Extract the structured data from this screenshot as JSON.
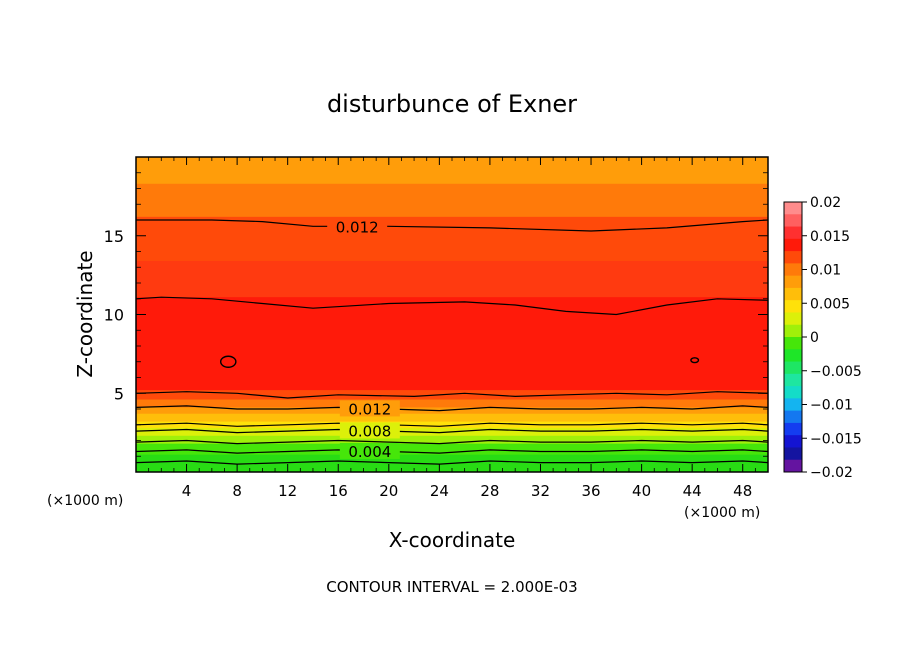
{
  "chart_data": {
    "type": "heatmap",
    "title": "disturbunce of Exner",
    "xlabel": "X-coordinate",
    "ylabel": "Z-coordinate",
    "x_unit_left": "(×1000 m)",
    "x_unit_right": "(×1000 m)",
    "footer": "CONTOUR INTERVAL = 2.000E-03",
    "xlim": [
      0,
      50
    ],
    "ylim": [
      0,
      20
    ],
    "x_ticks": [
      4,
      8,
      12,
      16,
      20,
      24,
      28,
      32,
      36,
      40,
      44,
      48
    ],
    "x_tick_labels": [
      "4",
      "8",
      "12",
      "16",
      "20",
      "24",
      "28",
      "32",
      "36",
      "40",
      "44",
      "48"
    ],
    "y_ticks": [
      5,
      10,
      15
    ],
    "y_tick_labels": [
      "5",
      "10",
      "15"
    ],
    "grid": false,
    "colorbar": {
      "placement": "right",
      "range": [
        -0.02,
        0.02
      ],
      "tick_values": [
        0.02,
        0.015,
        0.01,
        0.005,
        0,
        -0.005,
        -0.01,
        -0.015,
        -0.02
      ],
      "tick_labels": [
        "0.02",
        "0.015",
        "0.01",
        "0.005",
        "0",
        "−0.005",
        "−0.01",
        "−0.015",
        "−0.02"
      ],
      "colors_top_to_bottom": [
        "#ff8c8c",
        "#ff6060",
        "#ff3030",
        "#ff1a0a",
        "#ff4a0a",
        "#ff7a0a",
        "#ff9d0a",
        "#ffbe0a",
        "#ffe10a",
        "#dcf00a",
        "#a0f00a",
        "#46e60a",
        "#1ee628",
        "#1ee664",
        "#1ee6a0",
        "#14dcc8",
        "#14b4f0",
        "#1478f0",
        "#143cf0",
        "#1414d2",
        "#1414a0",
        "#6414a0"
      ]
    },
    "band_values_top_to_bottom": [
      {
        "z_top": 20.0,
        "z_bottom": 18.3,
        "color": "#ff9d0a"
      },
      {
        "z_top": 18.3,
        "z_bottom": 16.2,
        "color": "#ff7a0a"
      },
      {
        "z_top": 16.2,
        "z_bottom": 13.4,
        "color": "#ff4a0a"
      },
      {
        "z_top": 13.4,
        "z_bottom": 11.1,
        "color": "#ff3a10"
      },
      {
        "z_top": 11.1,
        "z_bottom": 5.2,
        "color": "#ff1a0a"
      },
      {
        "z_top": 5.2,
        "z_bottom": 4.6,
        "color": "#ff4a0a"
      },
      {
        "z_top": 4.6,
        "z_bottom": 4.1,
        "color": "#ff7a0a"
      },
      {
        "z_top": 4.1,
        "z_bottom": 3.7,
        "color": "#ff9d0a"
      },
      {
        "z_top": 3.7,
        "z_bottom": 3.2,
        "color": "#ffbe0a"
      },
      {
        "z_top": 3.2,
        "z_bottom": 2.8,
        "color": "#ffe10a"
      },
      {
        "z_top": 2.8,
        "z_bottom": 2.3,
        "color": "#dcf00a"
      },
      {
        "z_top": 2.3,
        "z_bottom": 1.8,
        "color": "#a0f00a"
      },
      {
        "z_top": 1.8,
        "z_bottom": 1.1,
        "color": "#46e60a"
      },
      {
        "z_top": 1.1,
        "z_bottom": 0.0,
        "color": "#28dc14"
      }
    ],
    "contours": [
      {
        "value": 0.012,
        "label": "0.012",
        "points": [
          [
            0,
            16.0
          ],
          [
            6,
            16.0
          ],
          [
            10,
            15.9
          ],
          [
            14,
            15.6
          ],
          [
            20,
            15.6
          ],
          [
            28,
            15.5
          ],
          [
            36,
            15.3
          ],
          [
            42,
            15.5
          ],
          [
            48,
            15.9
          ],
          [
            50,
            16.0
          ]
        ],
        "label_x": 17.5
      },
      {
        "value": 0.014,
        "label": "",
        "points": [
          [
            0,
            11.0
          ],
          [
            2,
            11.1
          ],
          [
            6,
            11.0
          ],
          [
            10,
            10.7
          ],
          [
            14,
            10.4
          ],
          [
            20,
            10.7
          ],
          [
            26,
            10.8
          ],
          [
            30,
            10.6
          ],
          [
            34,
            10.2
          ],
          [
            38,
            10.0
          ],
          [
            42,
            10.6
          ],
          [
            46,
            11.0
          ],
          [
            50,
            10.9
          ]
        ],
        "label_x": null
      },
      {
        "value": 0.014,
        "label": "",
        "points": [
          [
            0,
            5.0
          ],
          [
            4,
            5.1
          ],
          [
            8,
            5.0
          ],
          [
            12,
            4.7
          ],
          [
            16,
            4.9
          ],
          [
            22,
            4.8
          ],
          [
            26,
            5.0
          ],
          [
            30,
            4.8
          ],
          [
            34,
            4.9
          ],
          [
            38,
            5.0
          ],
          [
            42,
            4.9
          ],
          [
            46,
            5.1
          ],
          [
            50,
            5.0
          ]
        ],
        "label_x": null
      },
      {
        "value": 0.012,
        "label": "0.012",
        "points": [
          [
            0,
            4.1
          ],
          [
            4,
            4.2
          ],
          [
            8,
            4.0
          ],
          [
            12,
            4.0
          ],
          [
            16,
            4.1
          ],
          [
            20,
            4.0
          ],
          [
            24,
            3.9
          ],
          [
            28,
            4.1
          ],
          [
            32,
            4.0
          ],
          [
            36,
            4.0
          ],
          [
            40,
            4.1
          ],
          [
            44,
            4.0
          ],
          [
            48,
            4.2
          ],
          [
            50,
            4.1
          ]
        ],
        "label_x": 18.5
      },
      {
        "value": 0.01,
        "label": "",
        "points": [
          [
            0,
            3.0
          ],
          [
            4,
            3.1
          ],
          [
            8,
            2.9
          ],
          [
            12,
            3.0
          ],
          [
            16,
            3.1
          ],
          [
            20,
            3.0
          ],
          [
            24,
            2.9
          ],
          [
            28,
            3.1
          ],
          [
            32,
            3.0
          ],
          [
            36,
            3.0
          ],
          [
            40,
            3.1
          ],
          [
            44,
            3.0
          ],
          [
            48,
            3.1
          ],
          [
            50,
            3.0
          ]
        ],
        "label_x": null
      },
      {
        "value": 0.008,
        "label": "0.008",
        "points": [
          [
            0,
            2.6
          ],
          [
            4,
            2.7
          ],
          [
            8,
            2.5
          ],
          [
            12,
            2.6
          ],
          [
            16,
            2.7
          ],
          [
            20,
            2.6
          ],
          [
            24,
            2.5
          ],
          [
            28,
            2.7
          ],
          [
            32,
            2.6
          ],
          [
            36,
            2.6
          ],
          [
            40,
            2.7
          ],
          [
            44,
            2.6
          ],
          [
            48,
            2.7
          ],
          [
            50,
            2.6
          ]
        ],
        "label_x": 18.5
      },
      {
        "value": 0.006,
        "label": "",
        "points": [
          [
            0,
            1.9
          ],
          [
            4,
            2.0
          ],
          [
            8,
            1.8
          ],
          [
            12,
            1.9
          ],
          [
            16,
            2.0
          ],
          [
            20,
            1.9
          ],
          [
            24,
            1.8
          ],
          [
            28,
            2.0
          ],
          [
            32,
            1.9
          ],
          [
            36,
            1.9
          ],
          [
            40,
            2.0
          ],
          [
            44,
            1.9
          ],
          [
            48,
            2.0
          ],
          [
            50,
            1.9
          ]
        ],
        "label_x": null
      },
      {
        "value": 0.004,
        "label": "0.004",
        "points": [
          [
            0,
            1.3
          ],
          [
            4,
            1.4
          ],
          [
            8,
            1.2
          ],
          [
            12,
            1.3
          ],
          [
            16,
            1.4
          ],
          [
            20,
            1.3
          ],
          [
            24,
            1.2
          ],
          [
            28,
            1.4
          ],
          [
            32,
            1.3
          ],
          [
            36,
            1.3
          ],
          [
            40,
            1.4
          ],
          [
            44,
            1.3
          ],
          [
            48,
            1.4
          ],
          [
            50,
            1.3
          ]
        ],
        "label_x": 18.5
      },
      {
        "value": 0.002,
        "label": "",
        "points": [
          [
            0,
            0.6
          ],
          [
            4,
            0.7
          ],
          [
            8,
            0.5
          ],
          [
            12,
            0.6
          ],
          [
            16,
            0.7
          ],
          [
            20,
            0.6
          ],
          [
            24,
            0.5
          ],
          [
            28,
            0.7
          ],
          [
            32,
            0.6
          ],
          [
            36,
            0.6
          ],
          [
            40,
            0.7
          ],
          [
            44,
            0.6
          ],
          [
            48,
            0.7
          ],
          [
            50,
            0.6
          ]
        ],
        "label_x": null
      }
    ],
    "closed_contours": [
      {
        "value": 0.016,
        "cx": 7.3,
        "cz": 7.0,
        "rx": 0.6,
        "rz": 0.35
      },
      {
        "value": 0.016,
        "cx": 44.2,
        "cz": 7.1,
        "rx": 0.3,
        "rz": 0.15
      }
    ]
  }
}
